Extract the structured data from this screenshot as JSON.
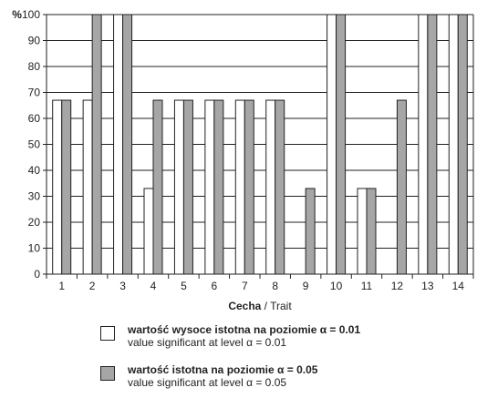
{
  "chart_data": {
    "type": "bar",
    "categories": [
      "1",
      "2",
      "3",
      "4",
      "5",
      "6",
      "7",
      "8",
      "9",
      "10",
      "11",
      "12",
      "13",
      "14"
    ],
    "series": [
      {
        "name": "wartość wysoce istotna na poziomie α = 0.01 / value significant at level α = 0.01",
        "color": "#ffffff",
        "values": [
          67,
          67,
          100,
          33,
          67,
          67,
          67,
          67,
          0,
          100,
          33,
          0,
          100,
          100
        ]
      },
      {
        "name": "wartość istotna na poziomie α = 0.05 / value significant at level α = 0.05",
        "color": "#a6a6a6",
        "values": [
          67,
          100,
          100,
          67,
          67,
          67,
          67,
          67,
          33,
          100,
          33,
          67,
          100,
          100
        ]
      }
    ],
    "yticks": [
      0,
      10,
      20,
      30,
      40,
      50,
      60,
      70,
      80,
      90,
      100
    ],
    "y_unit": "%",
    "ylim": [
      0,
      100
    ],
    "xlabel_bold": "Cecha",
    "xlabel_rest": " / Trait",
    "grid": true
  },
  "legend": {
    "item1_bold": "wartość wysoce istotna na poziomie α = 0.01",
    "item1_sub": "value significant at level α = 0.01",
    "item2_bold": "wartość istotna na poziomie α = 0.05",
    "item2_sub": "value significant at level α = 0.05"
  }
}
